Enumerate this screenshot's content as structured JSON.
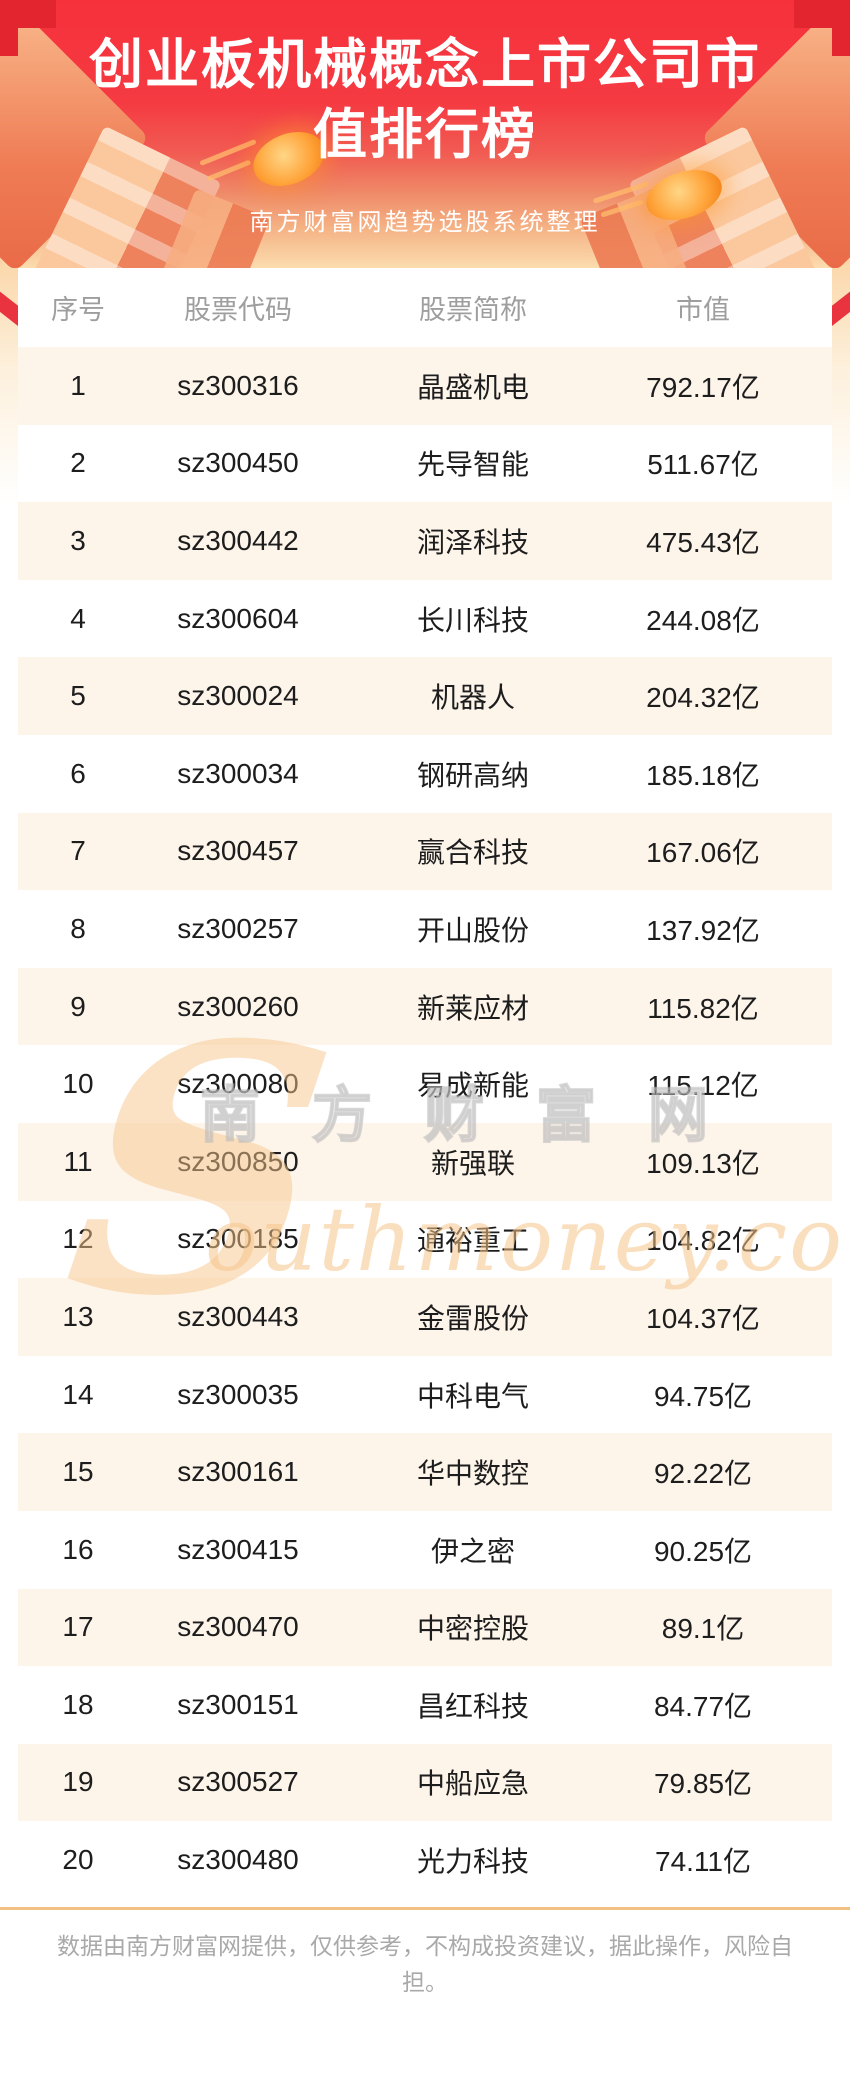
{
  "header": {
    "title": "创业板机械概念上市公司市值排行榜",
    "subtitle": "南方财富网趋势选股系统整理"
  },
  "table": {
    "columns": [
      "序号",
      "股票代码",
      "股票简称",
      "市值"
    ],
    "rows": [
      {
        "rank": "1",
        "code": "sz300316",
        "name": "晶盛机电",
        "value": "792.17亿"
      },
      {
        "rank": "2",
        "code": "sz300450",
        "name": "先导智能",
        "value": "511.67亿"
      },
      {
        "rank": "3",
        "code": "sz300442",
        "name": "润泽科技",
        "value": "475.43亿"
      },
      {
        "rank": "4",
        "code": "sz300604",
        "name": "长川科技",
        "value": "244.08亿"
      },
      {
        "rank": "5",
        "code": "sz300024",
        "name": "机器人",
        "value": "204.32亿"
      },
      {
        "rank": "6",
        "code": "sz300034",
        "name": "钢研高纳",
        "value": "185.18亿"
      },
      {
        "rank": "7",
        "code": "sz300457",
        "name": "赢合科技",
        "value": "167.06亿"
      },
      {
        "rank": "8",
        "code": "sz300257",
        "name": "开山股份",
        "value": "137.92亿"
      },
      {
        "rank": "9",
        "code": "sz300260",
        "name": "新莱应材",
        "value": "115.82亿"
      },
      {
        "rank": "10",
        "code": "sz300080",
        "name": "易成新能",
        "value": "115.12亿"
      },
      {
        "rank": "11",
        "code": "sz300850",
        "name": "新强联",
        "value": "109.13亿"
      },
      {
        "rank": "12",
        "code": "sz300185",
        "name": "通裕重工",
        "value": "104.82亿"
      },
      {
        "rank": "13",
        "code": "sz300443",
        "name": "金雷股份",
        "value": "104.37亿"
      },
      {
        "rank": "14",
        "code": "sz300035",
        "name": "中科电气",
        "value": "94.75亿"
      },
      {
        "rank": "15",
        "code": "sz300161",
        "name": "华中数控",
        "value": "92.22亿"
      },
      {
        "rank": "16",
        "code": "sz300415",
        "name": "伊之密",
        "value": "90.25亿"
      },
      {
        "rank": "17",
        "code": "sz300470",
        "name": "中密控股",
        "value": "89.1亿"
      },
      {
        "rank": "18",
        "code": "sz300151",
        "name": "昌红科技",
        "value": "84.77亿"
      },
      {
        "rank": "19",
        "code": "sz300527",
        "name": "中船应急",
        "value": "79.85亿"
      },
      {
        "rank": "20",
        "code": "sz300480",
        "name": "光力科技",
        "value": "74.11亿"
      }
    ]
  },
  "watermark": {
    "initial": "S",
    "cn": "南方财富网",
    "en": "outhmoney.com"
  },
  "footer": {
    "disclaimer": "数据由南方财富网提供，仅供参考，不构成投资建议，据此操作，风险自担。"
  },
  "colors": {
    "header_red": "#f6313b",
    "header_peach": "#fbdcae",
    "row_alt": "#fdf4ea",
    "divider": "#f3c083",
    "muted_text": "#9e9e9e"
  },
  "chart_data": {
    "type": "table",
    "title": "创业板机械概念上市公司市值排行榜",
    "subtitle": "南方财富网趋势选股系统整理",
    "columns": [
      "序号",
      "股票代码",
      "股票简称",
      "市值"
    ],
    "unit": "亿",
    "rows": [
      [
        "1",
        "sz300316",
        "晶盛机电",
        792.17
      ],
      [
        "2",
        "sz300450",
        "先导智能",
        511.67
      ],
      [
        "3",
        "sz300442",
        "润泽科技",
        475.43
      ],
      [
        "4",
        "sz300604",
        "长川科技",
        244.08
      ],
      [
        "5",
        "sz300024",
        "机器人",
        204.32
      ],
      [
        "6",
        "sz300034",
        "钢研高纳",
        185.18
      ],
      [
        "7",
        "sz300457",
        "赢合科技",
        167.06
      ],
      [
        "8",
        "sz300257",
        "开山股份",
        137.92
      ],
      [
        "9",
        "sz300260",
        "新莱应材",
        115.82
      ],
      [
        "10",
        "sz300080",
        "易成新能",
        115.12
      ],
      [
        "11",
        "sz300850",
        "新强联",
        109.13
      ],
      [
        "12",
        "sz300185",
        "通裕重工",
        104.82
      ],
      [
        "13",
        "sz300443",
        "金雷股份",
        104.37
      ],
      [
        "14",
        "sz300035",
        "中科电气",
        94.75
      ],
      [
        "15",
        "sz300161",
        "华中数控",
        92.22
      ],
      [
        "16",
        "sz300415",
        "伊之密",
        90.25
      ],
      [
        "17",
        "sz300470",
        "中密控股",
        89.1
      ],
      [
        "18",
        "sz300151",
        "昌红科技",
        84.77
      ],
      [
        "19",
        "sz300527",
        "中船应急",
        79.85
      ],
      [
        "20",
        "sz300480",
        "光力科技",
        74.11
      ]
    ]
  }
}
